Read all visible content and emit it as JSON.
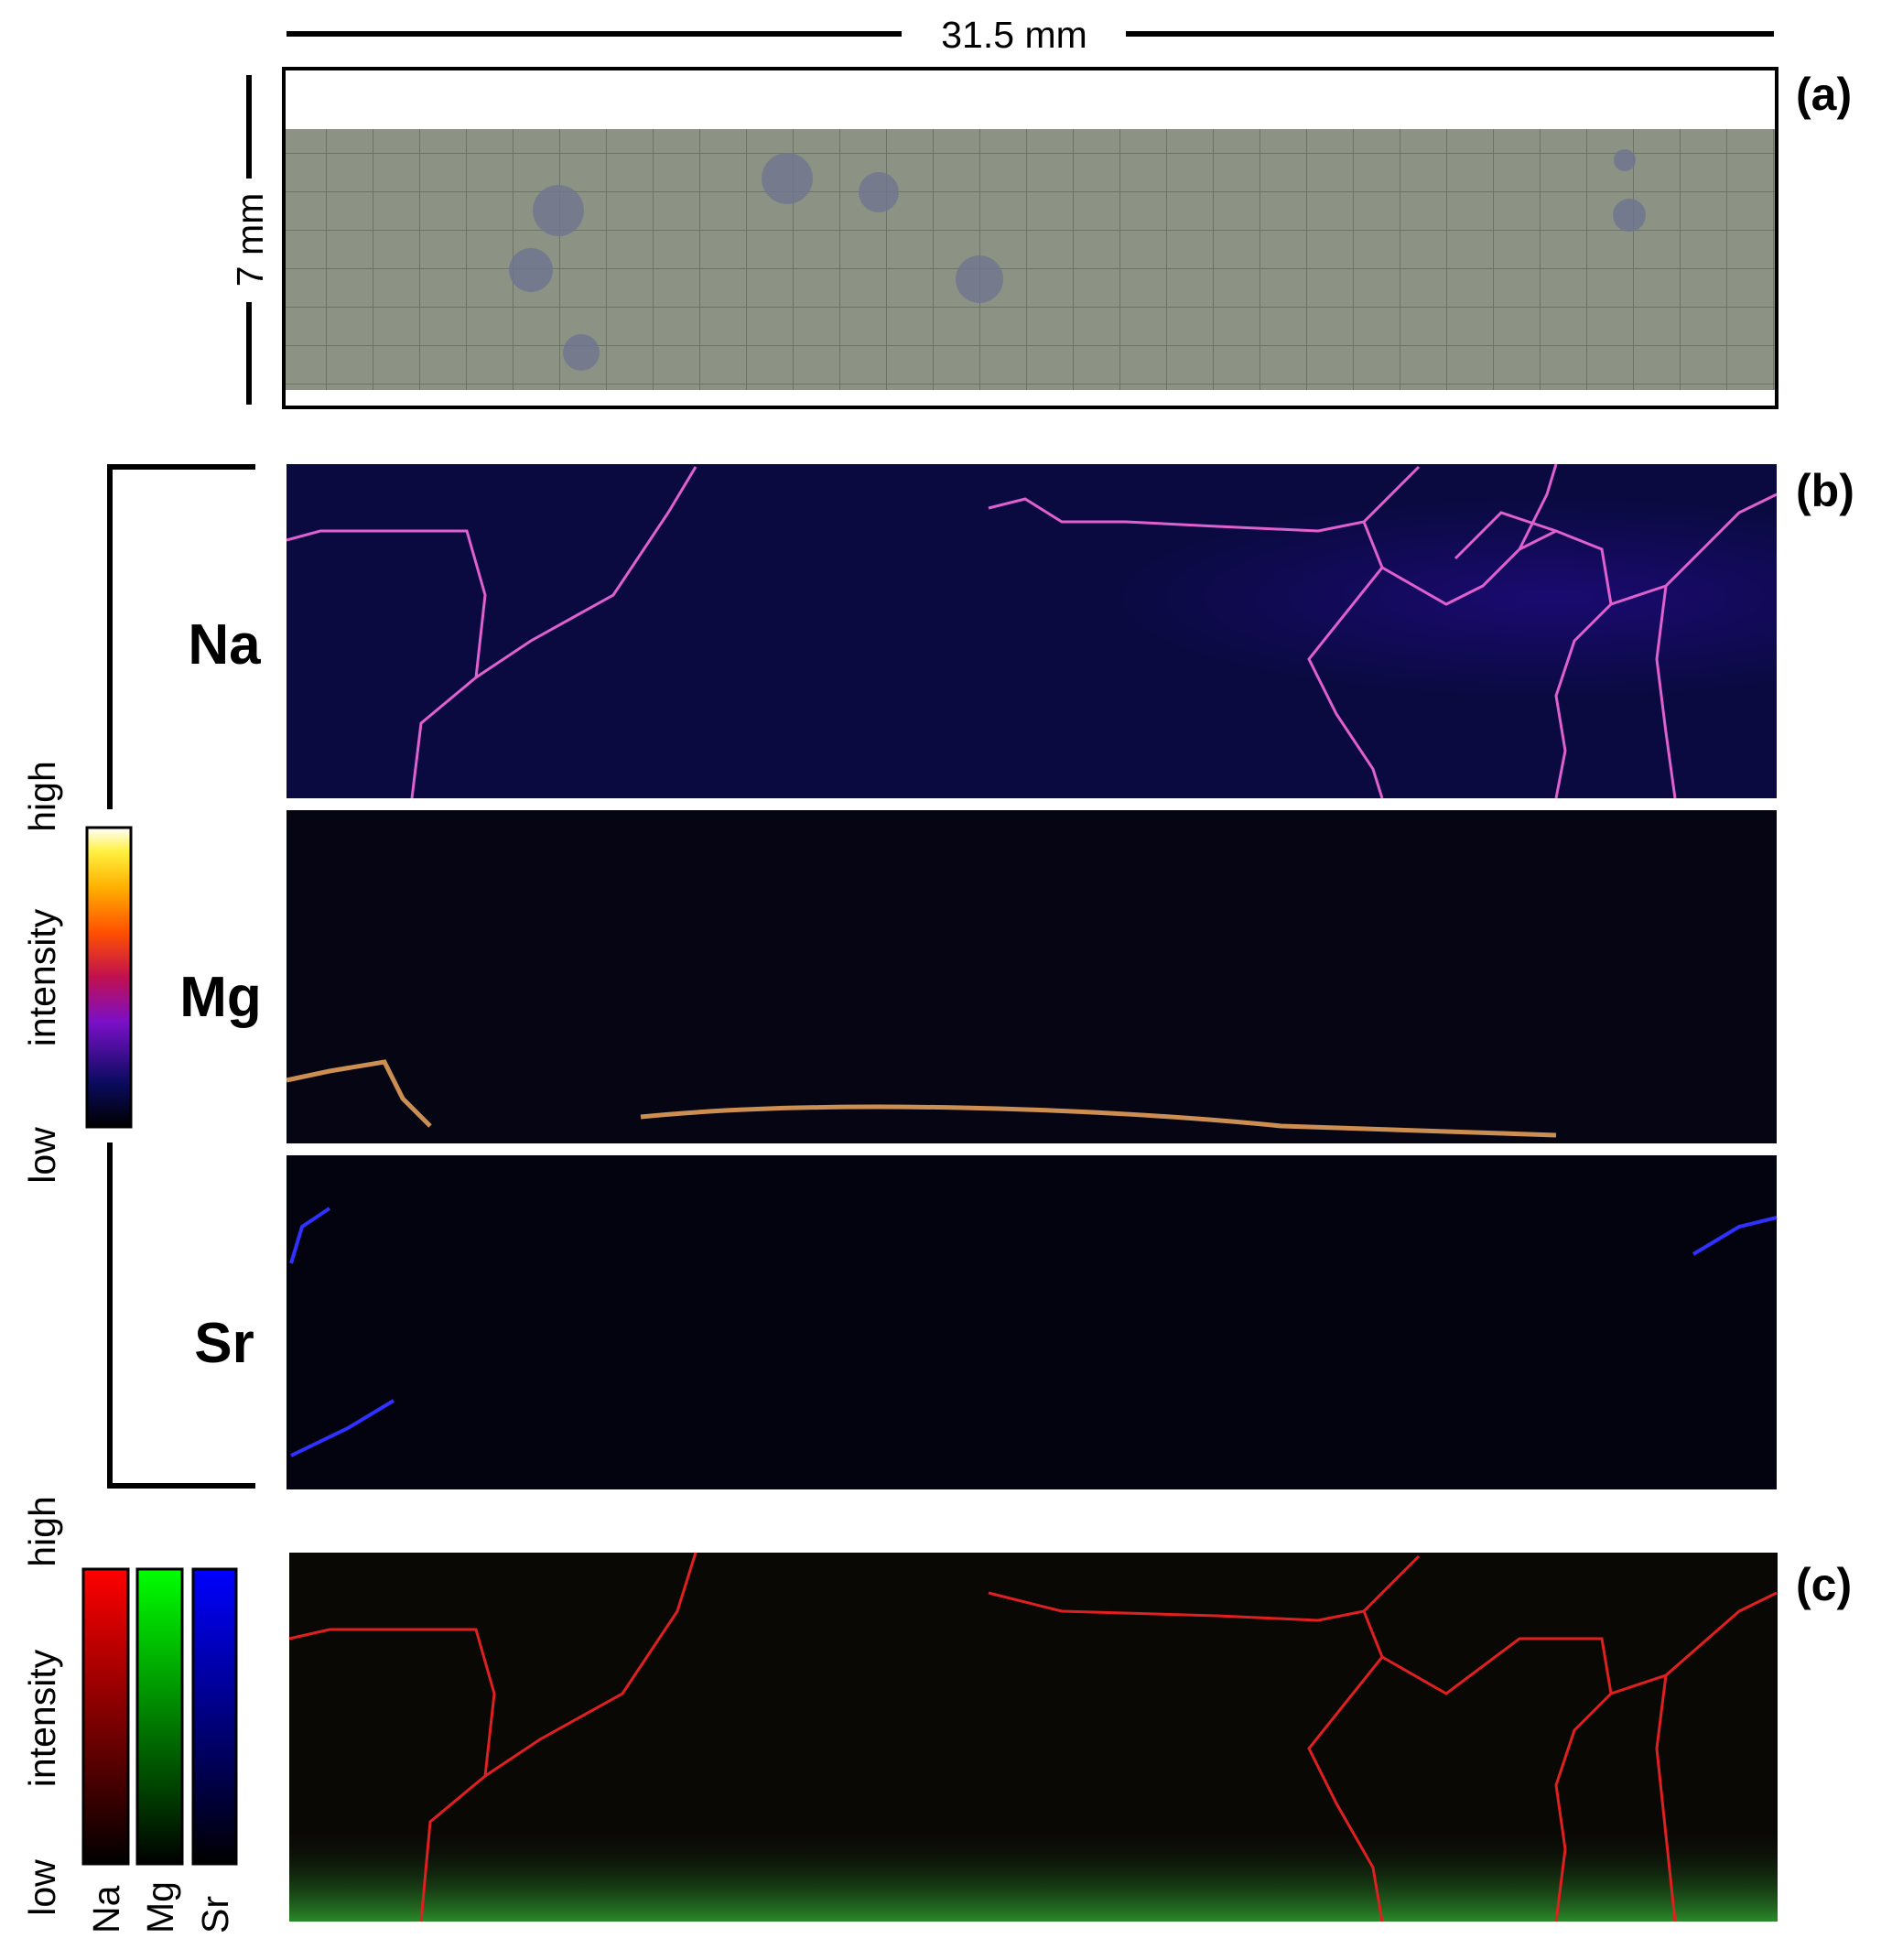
{
  "scale_bar": {
    "width": "31.5 mm",
    "height": "7 mm"
  },
  "panels": {
    "a": "(a)",
    "b": "(b)",
    "c": "(c)"
  },
  "elements": [
    "Na",
    "Mg",
    "Sr"
  ],
  "intensity_scale": {
    "high": "high",
    "axis": "intensity",
    "low": "low"
  },
  "rgb_scale": {
    "high": "high",
    "axis": "intensity",
    "low": "low",
    "channels": [
      "Na",
      "Mg",
      "Sr"
    ]
  }
}
